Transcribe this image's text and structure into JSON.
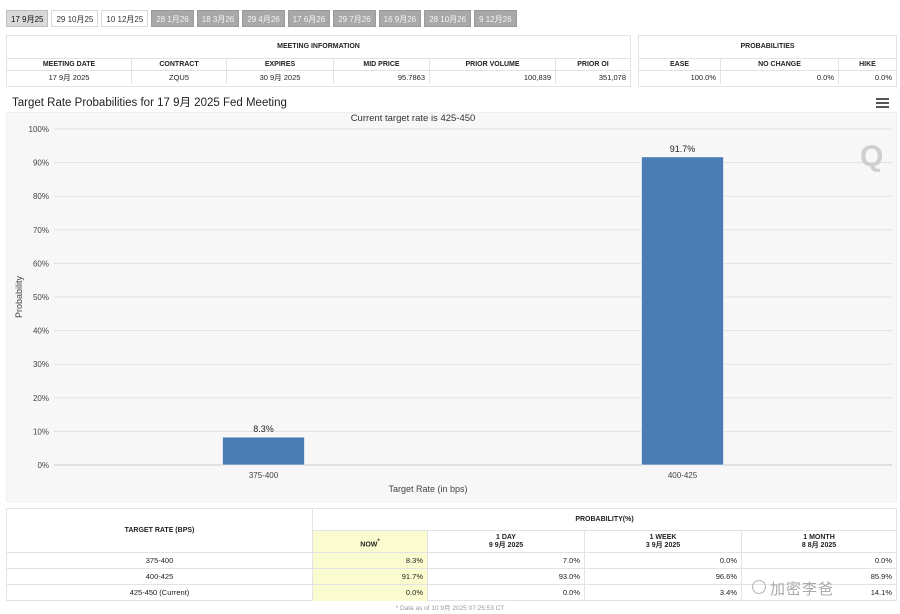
{
  "tabs": [
    {
      "label": "17 9月25",
      "state": "active"
    },
    {
      "label": "29 10月25",
      "state": "light"
    },
    {
      "label": "10 12月25",
      "state": "light"
    },
    {
      "label": "28 1月26",
      "state": "dark"
    },
    {
      "label": "18 3月26",
      "state": "dark"
    },
    {
      "label": "29 4月26",
      "state": "dark"
    },
    {
      "label": "17 6月26",
      "state": "dark"
    },
    {
      "label": "29 7月26",
      "state": "dark"
    },
    {
      "label": "16 9月26",
      "state": "dark"
    },
    {
      "label": "28 10月26",
      "state": "dark"
    },
    {
      "label": "9 12月26",
      "state": "dark"
    }
  ],
  "meeting_info": {
    "title": "MEETING INFORMATION",
    "headers": [
      "MEETING DATE",
      "CONTRACT",
      "EXPIRES",
      "MID PRICE",
      "PRIOR VOLUME",
      "PRIOR OI"
    ],
    "values": [
      "17 9月 2025",
      "ZQU5",
      "30 9月 2025",
      "95.7863",
      "100,839",
      "351,078"
    ]
  },
  "probabilities": {
    "title": "PROBABILITIES",
    "headers": [
      "EASE",
      "NO CHANGE",
      "HIKE"
    ],
    "values": [
      "100.0%",
      "0.0%",
      "0.0%"
    ]
  },
  "chart_title": "Target Rate Probabilities for 17 9月 2025 Fed Meeting",
  "chart_data": {
    "type": "bar",
    "title": "Current target rate is 425-450",
    "categories": [
      "375-400",
      "400-425"
    ],
    "values": [
      8.3,
      91.7
    ],
    "data_labels": [
      "8.3%",
      "91.7%"
    ],
    "xlabel": "Target Rate (in bps)",
    "ylabel": "Probability",
    "ylim": [
      0,
      100
    ],
    "yticks": [
      "0%",
      "10%",
      "20%",
      "30%",
      "40%",
      "50%",
      "60%",
      "70%",
      "80%",
      "90%",
      "100%"
    ],
    "bar_color": "#4a7db4",
    "grid": true
  },
  "watermark_q": "Q",
  "bottom_table": {
    "target_rate_header": "TARGET RATE (BPS)",
    "probability_header": "PROBABILITY(%)",
    "now_label": "NOW",
    "now_marker": "*",
    "periods": [
      {
        "line1": "1 DAY",
        "line2": "9 9月 2025"
      },
      {
        "line1": "1 WEEK",
        "line2": "3 9月 2025"
      },
      {
        "line1": "1 MONTH",
        "line2": "8 8月 2025"
      }
    ],
    "rows": [
      {
        "rate": "375-400",
        "now": "8.3%",
        "day": "7.0%",
        "week": "0.0%",
        "month": "0.0%"
      },
      {
        "rate": "400-425",
        "now": "91.7%",
        "day": "93.0%",
        "week": "96.6%",
        "month": "85.9%"
      },
      {
        "rate": "425-450 (Current)",
        "now": "0.0%",
        "day": "0.0%",
        "week": "3.4%",
        "month": "14.1%"
      }
    ],
    "highlight_color": "#fbfbd0"
  },
  "footnote": "* Data as of 10 9月 2025 07:25:53 CT",
  "overlay_watermark": "加密李爸"
}
